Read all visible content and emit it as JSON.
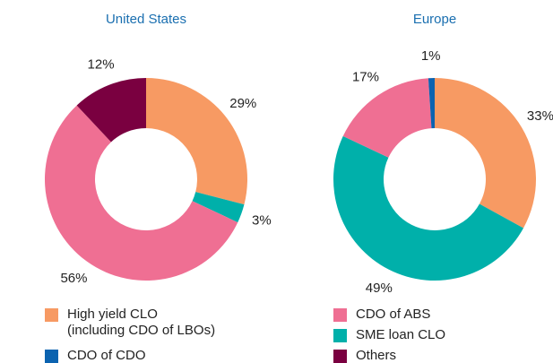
{
  "chart_data": [
    {
      "type": "pie",
      "title": "United States",
      "categories": [
        "High yield CLO\n(including CDO of LBOs)",
        "SME loan CLO",
        "CDO of ABS",
        "Others"
      ],
      "values": [
        29,
        3,
        56,
        12
      ],
      "value_labels": [
        "29%",
        "3%",
        "56%",
        "12%"
      ],
      "colors": [
        "#f79a63",
        "#00b0aa",
        "#ef6f93",
        "#7a0040"
      ]
    },
    {
      "type": "pie",
      "title": "Europe",
      "categories": [
        "High yield CLO\n(including CDO of LBOs)",
        "SME loan CLO",
        "CDO of ABS",
        "CDO of CDO"
      ],
      "values": [
        33,
        49,
        17,
        1
      ],
      "value_labels": [
        "33%",
        "49%",
        "17%",
        "1%"
      ],
      "colors": [
        "#f79a63",
        "#00b0aa",
        "#ef6f93",
        "#0b63b0"
      ]
    }
  ]
}
